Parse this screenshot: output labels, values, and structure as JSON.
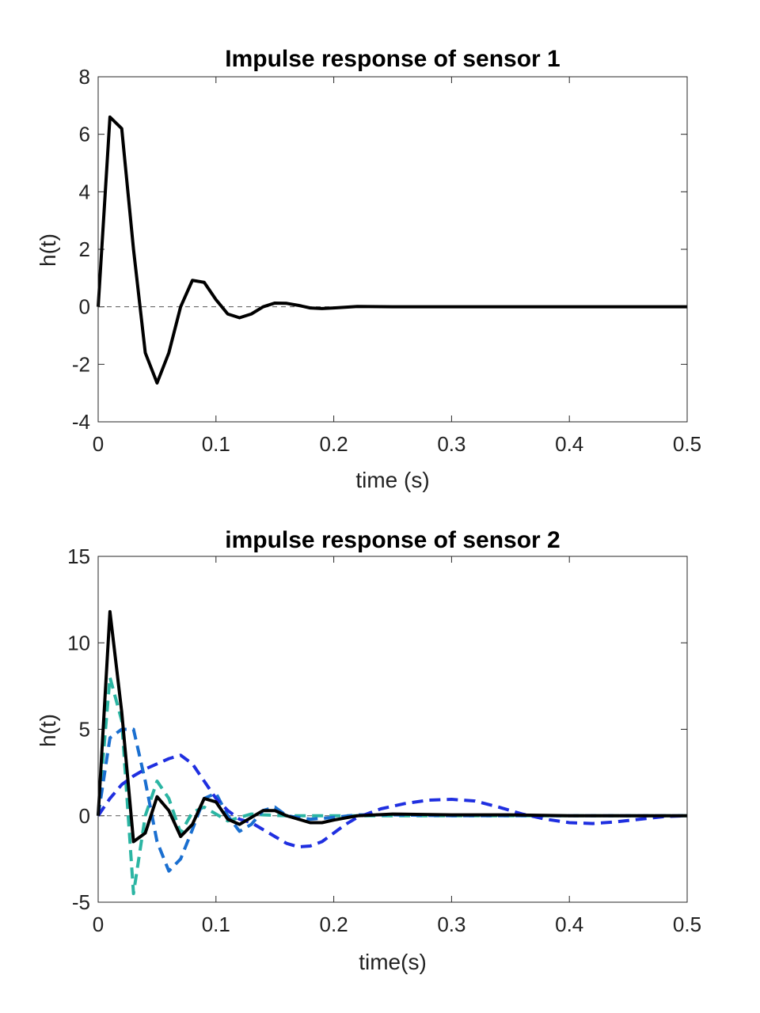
{
  "chart_data": [
    {
      "type": "line",
      "title": "Impulse response of sensor 1",
      "xlabel": "time (s)",
      "ylabel": "h(t)",
      "xlim": [
        0,
        0.5
      ],
      "ylim": [
        -4,
        8
      ],
      "xticks": [
        0,
        0.1,
        0.2,
        0.3,
        0.4,
        0.5
      ],
      "xtick_labels": [
        "0",
        "0.1",
        "0.2",
        "0.3",
        "0.4",
        "0.5"
      ],
      "yticks": [
        -4,
        -2,
        0,
        2,
        4,
        6,
        8
      ],
      "ytick_labels": [
        "-4",
        "-2",
        "0",
        "2",
        "4",
        "6",
        "8"
      ],
      "grid": false,
      "zero_line": true,
      "series": [
        {
          "color": "#000000",
          "dash": "solid",
          "x": [
            0,
            0.01,
            0.02,
            0.03,
            0.04,
            0.05,
            0.06,
            0.07,
            0.08,
            0.09,
            0.1,
            0.11,
            0.12,
            0.13,
            0.14,
            0.15,
            0.16,
            0.17,
            0.18,
            0.19,
            0.2,
            0.22,
            0.25,
            0.3,
            0.35,
            0.4,
            0.45,
            0.5
          ],
          "y": [
            0,
            6.6,
            6.2,
            2.0,
            -1.6,
            -2.65,
            -1.6,
            0.0,
            0.92,
            0.85,
            0.25,
            -0.25,
            -0.38,
            -0.25,
            0.0,
            0.13,
            0.12,
            0.05,
            -0.04,
            -0.06,
            -0.04,
            0.01,
            0.0,
            0.0,
            0.0,
            0.0,
            0.0,
            0.0
          ]
        }
      ]
    },
    {
      "type": "line",
      "title": "impulse response of sensor 2",
      "xlabel": "time(s)",
      "ylabel": "h(t)",
      "xlim": [
        0,
        0.5
      ],
      "ylim": [
        -5,
        15
      ],
      "xticks": [
        0,
        0.1,
        0.2,
        0.3,
        0.4,
        0.5
      ],
      "xtick_labels": [
        "0",
        "0.1",
        "0.2",
        "0.3",
        "0.4",
        "0.5"
      ],
      "yticks": [
        -5,
        0,
        5,
        10,
        15
      ],
      "ytick_labels": [
        "-5",
        "0",
        "5",
        "10",
        "15"
      ],
      "grid": false,
      "zero_line": true,
      "series": [
        {
          "color": "#2bb5a3",
          "dash": "dashed",
          "x": [
            0,
            0.01,
            0.02,
            0.03,
            0.04,
            0.05,
            0.06,
            0.07,
            0.08,
            0.09,
            0.1,
            0.11,
            0.12,
            0.13,
            0.14,
            0.16,
            0.2,
            0.3,
            0.4,
            0.5
          ],
          "y": [
            0,
            8.0,
            5.5,
            -4.5,
            0.0,
            2.0,
            1.0,
            -1.0,
            0.2,
            0.5,
            0.1,
            -0.3,
            -0.1,
            0.1,
            0.05,
            0.0,
            0.0,
            0.0,
            0.0,
            0.0
          ]
        },
        {
          "color": "#1a6fd0",
          "dash": "dashed",
          "x": [
            0,
            0.01,
            0.02,
            0.03,
            0.04,
            0.05,
            0.06,
            0.07,
            0.08,
            0.09,
            0.1,
            0.11,
            0.12,
            0.13,
            0.14,
            0.15,
            0.16,
            0.18,
            0.2,
            0.22,
            0.25,
            0.3,
            0.35,
            0.4,
            0.5
          ],
          "y": [
            0,
            4.5,
            5.0,
            5.0,
            2.0,
            -1.5,
            -3.2,
            -2.5,
            -0.8,
            1.0,
            1.3,
            0.0,
            -0.9,
            -0.5,
            0.3,
            0.5,
            0.0,
            -0.2,
            -0.1,
            0.05,
            0.05,
            0.0,
            0.0,
            0.0,
            0.0
          ]
        },
        {
          "color": "#1f2fe0",
          "dash": "dashed",
          "x": [
            0,
            0.01,
            0.02,
            0.03,
            0.04,
            0.05,
            0.06,
            0.07,
            0.08,
            0.09,
            0.1,
            0.11,
            0.12,
            0.13,
            0.14,
            0.15,
            0.16,
            0.17,
            0.18,
            0.19,
            0.2,
            0.21,
            0.22,
            0.24,
            0.26,
            0.28,
            0.3,
            0.32,
            0.34,
            0.36,
            0.38,
            0.4,
            0.42,
            0.44,
            0.46,
            0.48,
            0.5
          ],
          "y": [
            0,
            1.0,
            1.8,
            2.3,
            2.7,
            3.0,
            3.3,
            3.5,
            3.0,
            2.0,
            1.0,
            0.3,
            -0.2,
            -0.4,
            -0.8,
            -1.2,
            -1.6,
            -1.8,
            -1.75,
            -1.5,
            -1.0,
            -0.5,
            -0.1,
            0.4,
            0.7,
            0.9,
            0.95,
            0.85,
            0.5,
            0.1,
            -0.2,
            -0.4,
            -0.45,
            -0.35,
            -0.2,
            -0.05,
            0.0
          ]
        },
        {
          "color": "#000000",
          "dash": "solid",
          "x": [
            0,
            0.01,
            0.02,
            0.03,
            0.04,
            0.05,
            0.06,
            0.07,
            0.08,
            0.09,
            0.1,
            0.11,
            0.12,
            0.13,
            0.14,
            0.15,
            0.16,
            0.17,
            0.18,
            0.19,
            0.2,
            0.22,
            0.25,
            0.3,
            0.35,
            0.4,
            0.45,
            0.5
          ],
          "y": [
            0,
            11.8,
            6.0,
            -1.5,
            -1.0,
            1.1,
            0.3,
            -1.2,
            -0.5,
            1.0,
            0.8,
            -0.2,
            -0.5,
            -0.1,
            0.3,
            0.3,
            0.0,
            -0.2,
            -0.4,
            -0.4,
            -0.25,
            0.0,
            0.1,
            0.05,
            0.05,
            0.0,
            0.0,
            0.0
          ]
        }
      ]
    }
  ]
}
